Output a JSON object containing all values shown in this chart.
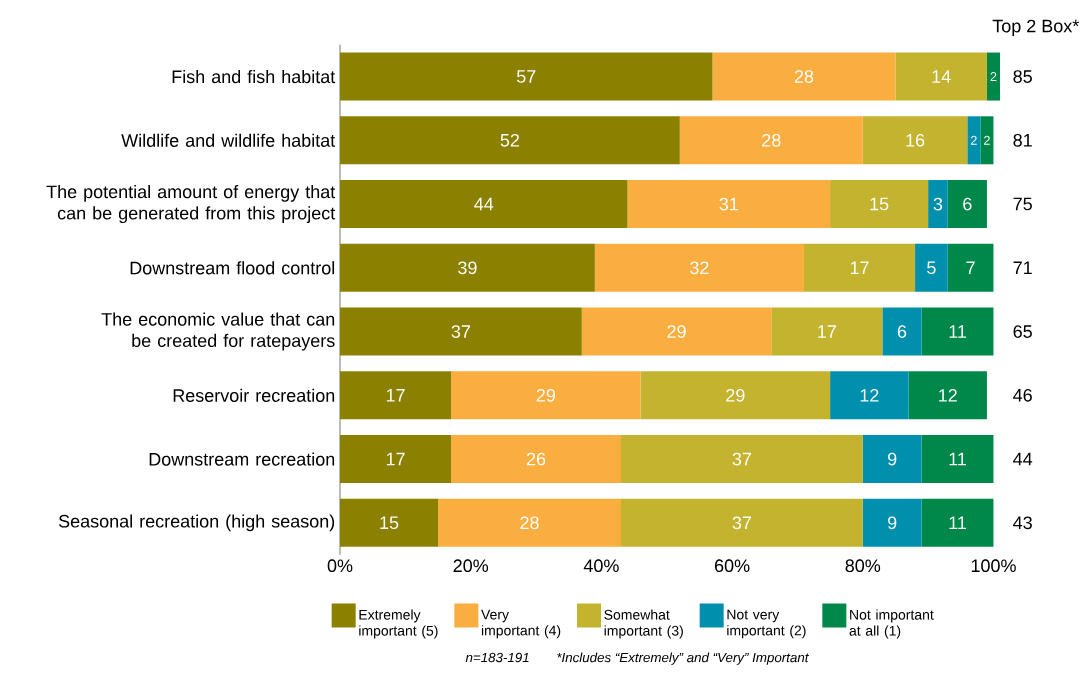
{
  "chart_data": {
    "type": "bar",
    "orientation": "horizontal",
    "stacked": true,
    "data_labels": true,
    "legend": "bottom",
    "grid": false,
    "categories": [
      "Fish and fish habitat",
      "Wildlife and wildlife habitat",
      "The potential amount of energy that can be generated from this project",
      "Downstream flood control",
      "The economic value that can be created for ratepayers",
      "Reservoir recreation",
      "Downstream recreation",
      "Seasonal recreation (high season)"
    ],
    "series": [
      {
        "name": "Extremely important (5)",
        "color": "#8c8000",
        "values": [
          57,
          52,
          44,
          39,
          37,
          17,
          17,
          15
        ]
      },
      {
        "name": "Very important (4)",
        "color": "#f9ae3f",
        "values": [
          28,
          28,
          31,
          32,
          29,
          29,
          26,
          28
        ]
      },
      {
        "name": "Somewhat important (3)",
        "color": "#c3b32e",
        "values": [
          14,
          16,
          15,
          17,
          17,
          29,
          37,
          37
        ]
      },
      {
        "name": "Not very important (2)",
        "color": "#0090ad",
        "values": [
          null,
          2,
          3,
          5,
          6,
          12,
          9,
          9
        ]
      },
      {
        "name": "Not important at all (1)",
        "color": "#00874a",
        "values": [
          2,
          2,
          6,
          7,
          11,
          12,
          11,
          11
        ]
      }
    ],
    "xlim": [
      0,
      101
    ],
    "xticks": [
      {
        "value": 0,
        "label": "0%"
      },
      {
        "value": 20,
        "label": "20%"
      },
      {
        "value": 40,
        "label": "40%"
      },
      {
        "value": 60,
        "label": "60%"
      },
      {
        "value": 80,
        "label": "80%"
      },
      {
        "value": 100,
        "label": "100%"
      }
    ],
    "annotations": [
      "Top 2 Box*",
      "85",
      "81",
      "75",
      "71",
      "65",
      "46",
      "44",
      "43",
      "n=183-191",
      "*Includes “Extremely” and “Very” Important"
    ]
  }
}
